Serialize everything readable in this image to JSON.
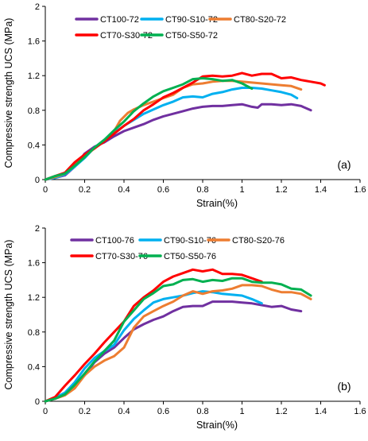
{
  "chart_data": [
    {
      "type": "line",
      "panel_label": "(a)",
      "xlabel": "Strain(%)",
      "ylabel": "Compressive strength UCS (MPa)",
      "xlim": [
        0,
        1.6
      ],
      "ylim": [
        0,
        2
      ],
      "xticks": [
        "0",
        "0.2",
        "0.4",
        "0.6",
        "0.8",
        "1",
        "1.2",
        "1.4",
        "1.6"
      ],
      "yticks": [
        "0",
        "0.4",
        "0.8",
        "1.2",
        "1.6",
        "2"
      ],
      "grid": false,
      "legend_position": "top",
      "series": [
        {
          "name": "CT100-72",
          "color": "#7030a0",
          "x": [
            0,
            0.05,
            0.1,
            0.15,
            0.2,
            0.25,
            0.3,
            0.35,
            0.4,
            0.45,
            0.5,
            0.55,
            0.6,
            0.65,
            0.7,
            0.75,
            0.8,
            0.85,
            0.9,
            0.95,
            1.0,
            1.05,
            1.08,
            1.1,
            1.15,
            1.2,
            1.25,
            1.3,
            1.35
          ],
          "y": [
            0,
            0.02,
            0.05,
            0.15,
            0.3,
            0.38,
            0.43,
            0.5,
            0.56,
            0.6,
            0.64,
            0.69,
            0.73,
            0.76,
            0.79,
            0.82,
            0.84,
            0.85,
            0.85,
            0.86,
            0.87,
            0.84,
            0.83,
            0.87,
            0.87,
            0.86,
            0.87,
            0.85,
            0.8
          ]
        },
        {
          "name": "CT90-S10-72",
          "color": "#00b0f0",
          "x": [
            0,
            0.05,
            0.1,
            0.15,
            0.2,
            0.25,
            0.3,
            0.35,
            0.4,
            0.45,
            0.5,
            0.55,
            0.6,
            0.65,
            0.7,
            0.75,
            0.8,
            0.85,
            0.9,
            0.95,
            1.0,
            1.05,
            1.1,
            1.15,
            1.2,
            1.25,
            1.28
          ],
          "y": [
            0,
            0.02,
            0.06,
            0.15,
            0.25,
            0.37,
            0.46,
            0.54,
            0.62,
            0.69,
            0.76,
            0.81,
            0.86,
            0.9,
            0.95,
            0.96,
            0.95,
            0.99,
            1.01,
            1.04,
            1.06,
            1.06,
            1.05,
            1.03,
            1.01,
            0.98,
            0.94
          ]
        },
        {
          "name": "CT80-S20-72",
          "color": "#ed7d31",
          "x": [
            0,
            0.05,
            0.1,
            0.15,
            0.2,
            0.25,
            0.3,
            0.35,
            0.38,
            0.42,
            0.45,
            0.5,
            0.55,
            0.6,
            0.65,
            0.7,
            0.75,
            0.8,
            0.85,
            0.9,
            0.95,
            1.0,
            1.05,
            1.1,
            1.15,
            1.2,
            1.25,
            1.3
          ],
          "y": [
            0,
            0.03,
            0.07,
            0.17,
            0.27,
            0.36,
            0.45,
            0.56,
            0.68,
            0.77,
            0.81,
            0.86,
            0.9,
            0.94,
            0.98,
            1.06,
            1.1,
            1.11,
            1.13,
            1.14,
            1.14,
            1.13,
            1.12,
            1.11,
            1.1,
            1.09,
            1.08,
            1.04
          ]
        },
        {
          "name": "CT70-S30-72",
          "color": "#ff0000",
          "x": [
            0,
            0.05,
            0.1,
            0.15,
            0.2,
            0.25,
            0.3,
            0.35,
            0.4,
            0.45,
            0.5,
            0.55,
            0.6,
            0.65,
            0.7,
            0.75,
            0.8,
            0.85,
            0.9,
            0.95,
            1.0,
            1.05,
            1.1,
            1.15,
            1.2,
            1.25,
            1.3,
            1.35,
            1.4,
            1.42
          ],
          "y": [
            0,
            0.04,
            0.08,
            0.2,
            0.29,
            0.36,
            0.44,
            0.53,
            0.62,
            0.7,
            0.8,
            0.87,
            0.95,
            1.0,
            1.06,
            1.12,
            1.19,
            1.2,
            1.19,
            1.2,
            1.23,
            1.2,
            1.22,
            1.22,
            1.17,
            1.18,
            1.15,
            1.13,
            1.11,
            1.09
          ]
        },
        {
          "name": "CT50-S50-72",
          "color": "#00b050",
          "x": [
            0,
            0.05,
            0.1,
            0.15,
            0.2,
            0.25,
            0.3,
            0.35,
            0.4,
            0.45,
            0.5,
            0.55,
            0.6,
            0.65,
            0.7,
            0.75,
            0.8,
            0.85,
            0.9,
            0.95,
            1.0,
            1.05
          ],
          "y": [
            0,
            0.04,
            0.07,
            0.16,
            0.26,
            0.37,
            0.46,
            0.57,
            0.67,
            0.79,
            0.88,
            0.96,
            1.02,
            1.06,
            1.1,
            1.16,
            1.17,
            1.16,
            1.14,
            1.15,
            1.11,
            1.05
          ]
        }
      ]
    },
    {
      "type": "line",
      "panel_label": "(b)",
      "xlabel": "Strain(%)",
      "ylabel": "Compressive strength UCS (MPa)",
      "xlim": [
        0,
        1.6
      ],
      "ylim": [
        0,
        2
      ],
      "xticks": [
        "0",
        "0.2",
        "0.4",
        "0.6",
        "0.8",
        "1",
        "1.2",
        "1.4",
        "1.6"
      ],
      "yticks": [
        "0",
        "0.4",
        "0.8",
        "1.2",
        "1.6",
        "2"
      ],
      "grid": false,
      "legend_position": "top",
      "series": [
        {
          "name": "CT100-76",
          "color": "#7030a0",
          "x": [
            0,
            0.05,
            0.1,
            0.15,
            0.2,
            0.25,
            0.3,
            0.35,
            0.4,
            0.45,
            0.5,
            0.55,
            0.6,
            0.65,
            0.7,
            0.75,
            0.8,
            0.85,
            0.9,
            0.95,
            1.0,
            1.05,
            1.1,
            1.15,
            1.2,
            1.25,
            1.3
          ],
          "y": [
            0,
            0.03,
            0.08,
            0.18,
            0.3,
            0.45,
            0.55,
            0.62,
            0.73,
            0.83,
            0.89,
            0.94,
            0.98,
            1.04,
            1.09,
            1.1,
            1.1,
            1.15,
            1.15,
            1.15,
            1.14,
            1.13,
            1.11,
            1.09,
            1.1,
            1.06,
            1.04
          ]
        },
        {
          "name": "CT90-S10-76",
          "color": "#00b0f0",
          "x": [
            0,
            0.05,
            0.1,
            0.15,
            0.2,
            0.25,
            0.3,
            0.35,
            0.4,
            0.45,
            0.5,
            0.55,
            0.6,
            0.65,
            0.7,
            0.75,
            0.8,
            0.85,
            0.9,
            0.95,
            1.0,
            1.05,
            1.1
          ],
          "y": [
            0,
            0.04,
            0.1,
            0.22,
            0.38,
            0.5,
            0.58,
            0.65,
            0.82,
            0.95,
            1.05,
            1.14,
            1.18,
            1.2,
            1.22,
            1.25,
            1.27,
            1.26,
            1.24,
            1.23,
            1.22,
            1.18,
            1.13
          ]
        },
        {
          "name": "CT80-S20-76",
          "color": "#ed7d31",
          "x": [
            0,
            0.05,
            0.1,
            0.15,
            0.2,
            0.25,
            0.3,
            0.35,
            0.4,
            0.45,
            0.5,
            0.55,
            0.6,
            0.65,
            0.7,
            0.75,
            0.8,
            0.85,
            0.9,
            0.95,
            1.0,
            1.05,
            1.1,
            1.15,
            1.2,
            1.25,
            1.3,
            1.35
          ],
          "y": [
            0,
            0.03,
            0.07,
            0.15,
            0.3,
            0.4,
            0.47,
            0.52,
            0.62,
            0.85,
            0.98,
            1.04,
            1.1,
            1.15,
            1.22,
            1.27,
            1.24,
            1.27,
            1.28,
            1.3,
            1.34,
            1.34,
            1.33,
            1.29,
            1.26,
            1.26,
            1.24,
            1.18
          ]
        },
        {
          "name": "CT70-S30-76",
          "color": "#ff0000",
          "x": [
            0,
            0.05,
            0.1,
            0.15,
            0.2,
            0.25,
            0.3,
            0.35,
            0.4,
            0.45,
            0.5,
            0.55,
            0.6,
            0.65,
            0.7,
            0.75,
            0.8,
            0.85,
            0.9,
            0.95,
            1.0,
            1.05,
            1.1
          ],
          "y": [
            0,
            0.05,
            0.18,
            0.3,
            0.43,
            0.55,
            0.68,
            0.8,
            0.92,
            1.1,
            1.2,
            1.28,
            1.38,
            1.44,
            1.48,
            1.52,
            1.5,
            1.52,
            1.47,
            1.47,
            1.46,
            1.42,
            1.38
          ]
        },
        {
          "name": "CT50-S50-76",
          "color": "#00b050",
          "x": [
            0,
            0.05,
            0.1,
            0.15,
            0.2,
            0.25,
            0.3,
            0.35,
            0.4,
            0.45,
            0.5,
            0.55,
            0.6,
            0.65,
            0.7,
            0.75,
            0.8,
            0.85,
            0.9,
            0.95,
            1.0,
            1.05,
            1.1,
            1.15,
            1.2,
            1.25,
            1.3,
            1.35
          ],
          "y": [
            0,
            0.03,
            0.08,
            0.19,
            0.32,
            0.46,
            0.58,
            0.7,
            0.92,
            1.05,
            1.18,
            1.25,
            1.33,
            1.35,
            1.4,
            1.41,
            1.38,
            1.4,
            1.39,
            1.42,
            1.42,
            1.38,
            1.37,
            1.37,
            1.35,
            1.3,
            1.29,
            1.22
          ]
        }
      ]
    }
  ]
}
